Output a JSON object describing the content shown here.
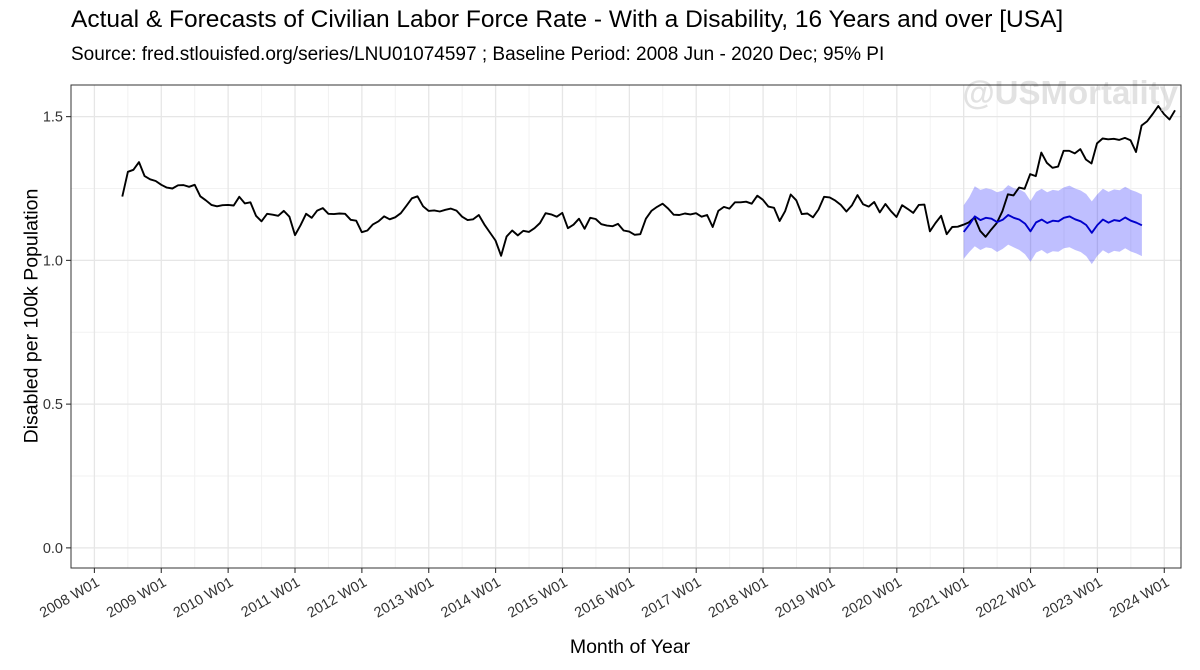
{
  "chart_data": {
    "type": "line",
    "title": "Actual & Forecasts of Civilian Labor Force Rate - With a Disability, 16 Years and over [USA]",
    "subtitle": "Source: fred.stlouisfed.org/series/LNU01074597 ; Baseline Period: 2008 Jun - 2020 Dec; 95% PI",
    "xlabel": "Month of Year",
    "ylabel": "Disabled per 100k Population",
    "watermark": "@USMortality",
    "xlim": [
      2007.65,
      2024.25
    ],
    "ylim": [
      -0.07,
      1.61
    ],
    "y_ticks": [
      0.0,
      0.5,
      1.0,
      1.5
    ],
    "y_tick_labels": [
      "0.0",
      "0.5",
      "1.0",
      "1.5"
    ],
    "x_ticks": [
      2008,
      2009,
      2010,
      2011,
      2012,
      2013,
      2014,
      2015,
      2016,
      2017,
      2018,
      2019,
      2020,
      2021,
      2022,
      2023,
      2024
    ],
    "x_tick_labels": [
      "2008 W01",
      "2009 W01",
      "2010 W01",
      "2011 W01",
      "2012 W01",
      "2013 W01",
      "2014 W01",
      "2015 W01",
      "2016 W01",
      "2017 W01",
      "2018 W01",
      "2019 W01",
      "2020 W01",
      "2021 W01",
      "2022 W01",
      "2023 W01",
      "2024 W01"
    ],
    "grid": true,
    "series": [
      {
        "name": "Actual",
        "color": "#000000",
        "x_start": 2008.417,
        "x_step": 0.0833,
        "values": [
          1.222,
          1.308,
          1.315,
          1.342,
          1.293,
          1.282,
          1.276,
          1.263,
          1.253,
          1.25,
          1.261,
          1.262,
          1.256,
          1.263,
          1.223,
          1.209,
          1.193,
          1.188,
          1.192,
          1.193,
          1.191,
          1.221,
          1.198,
          1.202,
          1.155,
          1.136,
          1.162,
          1.159,
          1.155,
          1.172,
          1.152,
          1.088,
          1.122,
          1.162,
          1.148,
          1.173,
          1.182,
          1.162,
          1.161,
          1.163,
          1.162,
          1.141,
          1.138,
          1.098,
          1.104,
          1.125,
          1.136,
          1.153,
          1.143,
          1.15,
          1.164,
          1.19,
          1.216,
          1.223,
          1.188,
          1.172,
          1.174,
          1.17,
          1.176,
          1.18,
          1.173,
          1.152,
          1.14,
          1.143,
          1.158,
          1.125,
          1.097,
          1.069,
          1.016,
          1.083,
          1.104,
          1.087,
          1.103,
          1.099,
          1.112,
          1.13,
          1.164,
          1.16,
          1.152,
          1.165,
          1.112,
          1.124,
          1.145,
          1.11,
          1.148,
          1.144,
          1.126,
          1.121,
          1.119,
          1.127,
          1.104,
          1.1,
          1.089,
          1.091,
          1.145,
          1.172,
          1.186,
          1.197,
          1.18,
          1.159,
          1.158,
          1.163,
          1.16,
          1.164,
          1.152,
          1.158,
          1.116,
          1.172,
          1.186,
          1.18,
          1.202,
          1.202,
          1.204,
          1.197,
          1.225,
          1.211,
          1.187,
          1.183,
          1.137,
          1.171,
          1.229,
          1.209,
          1.161,
          1.163,
          1.15,
          1.177,
          1.221,
          1.219,
          1.208,
          1.193,
          1.17,
          1.192,
          1.227,
          1.195,
          1.187,
          1.203,
          1.167,
          1.196,
          1.171,
          1.151,
          1.192,
          1.179,
          1.165,
          1.193,
          1.194,
          1.101,
          1.13,
          1.155,
          1.091,
          1.116,
          1.117,
          1.124,
          1.132,
          1.149,
          1.103,
          1.082,
          1.107,
          1.13,
          1.171,
          1.23,
          1.226,
          1.253,
          1.249,
          1.3,
          1.293,
          1.375,
          1.339,
          1.322,
          1.326,
          1.381,
          1.381,
          1.372,
          1.387,
          1.351,
          1.337,
          1.407,
          1.424,
          1.421,
          1.423,
          1.419,
          1.426,
          1.418,
          1.377,
          1.469,
          1.484,
          1.509,
          1.537,
          1.509,
          1.49,
          1.522
        ]
      },
      {
        "name": "Forecast",
        "color": "#0000cc",
        "x_start": 2021.0,
        "x_step": 0.0833,
        "values": [
          1.099,
          1.124,
          1.153,
          1.14,
          1.148,
          1.145,
          1.133,
          1.141,
          1.158,
          1.148,
          1.142,
          1.128,
          1.101,
          1.132,
          1.142,
          1.13,
          1.138,
          1.136,
          1.148,
          1.153,
          1.143,
          1.136,
          1.123,
          1.096,
          1.123,
          1.142,
          1.131,
          1.14,
          1.137,
          1.149,
          1.138,
          1.131,
          1.122
        ]
      },
      {
        "name": "95% PI",
        "type": "band",
        "color": "#0000ff",
        "opacity": 0.25,
        "x_start": 2021.0,
        "x_step": 0.0833,
        "lower": [
          1.006,
          1.029,
          1.049,
          1.036,
          1.045,
          1.042,
          1.029,
          1.04,
          1.055,
          1.045,
          1.036,
          1.021,
          0.995,
          1.027,
          1.036,
          1.023,
          1.032,
          1.03,
          1.042,
          1.046,
          1.036,
          1.029,
          1.015,
          0.987,
          1.016,
          1.035,
          1.024,
          1.033,
          1.03,
          1.042,
          1.031,
          1.024,
          1.015
        ],
        "upper": [
          1.192,
          1.22,
          1.258,
          1.245,
          1.251,
          1.247,
          1.237,
          1.243,
          1.262,
          1.251,
          1.247,
          1.236,
          1.207,
          1.238,
          1.249,
          1.237,
          1.245,
          1.242,
          1.254,
          1.26,
          1.25,
          1.243,
          1.231,
          1.205,
          1.23,
          1.249,
          1.238,
          1.247,
          1.244,
          1.256,
          1.245,
          1.238,
          1.229
        ]
      }
    ]
  }
}
